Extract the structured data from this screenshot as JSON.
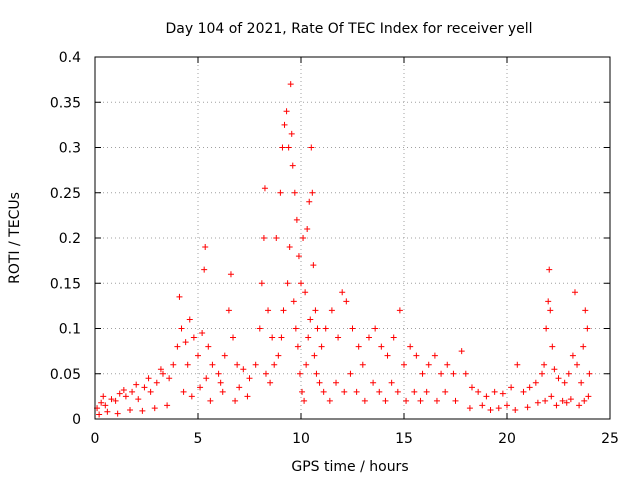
{
  "chart_data": {
    "type": "scatter",
    "title": "Day 104 of 2021, Rate Of TEC Index for receiver yell",
    "xlabel": "GPS time / hours",
    "ylabel": "ROTI / TECUs",
    "xlim": [
      0,
      25
    ],
    "ylim": [
      0,
      0.4
    ],
    "x_ticks": [
      0,
      5,
      10,
      15,
      20,
      25
    ],
    "x_tick_labels": [
      "0",
      "5",
      "10",
      "15",
      "20",
      "25"
    ],
    "y_ticks": [
      0,
      0.05,
      0.1,
      0.15,
      0.2,
      0.25,
      0.3,
      0.35,
      0.4
    ],
    "y_tick_labels": [
      "0",
      "0.05",
      "0.1",
      "0.15",
      "0.2",
      "0.25",
      "0.3",
      "0.35",
      "0.4"
    ],
    "grid": true,
    "marker": "+",
    "color": "#ff0000",
    "series": [
      {
        "name": "ROTI",
        "points": [
          [
            0.1,
            0.012
          ],
          [
            0.3,
            0.018
          ],
          [
            0.5,
            0.015
          ],
          [
            0.8,
            0.022
          ],
          [
            1.0,
            0.02
          ],
          [
            1.2,
            0.028
          ],
          [
            1.5,
            0.025
          ],
          [
            1.8,
            0.03
          ],
          [
            2.1,
            0.022
          ],
          [
            2.4,
            0.035
          ],
          [
            2.7,
            0.03
          ],
          [
            3.0,
            0.04
          ],
          [
            3.3,
            0.05
          ],
          [
            3.6,
            0.045
          ],
          [
            0.2,
            0.005
          ],
          [
            0.6,
            0.008
          ],
          [
            1.1,
            0.006
          ],
          [
            1.7,
            0.01
          ],
          [
            2.3,
            0.009
          ],
          [
            2.9,
            0.012
          ],
          [
            3.5,
            0.015
          ],
          [
            0.4,
            0.025
          ],
          [
            1.4,
            0.032
          ],
          [
            2.0,
            0.038
          ],
          [
            2.6,
            0.045
          ],
          [
            3.2,
            0.055
          ],
          [
            3.8,
            0.06
          ],
          [
            4.0,
            0.08
          ],
          [
            4.1,
            0.135
          ],
          [
            4.2,
            0.1
          ],
          [
            4.4,
            0.085
          ],
          [
            4.6,
            0.11
          ],
          [
            4.8,
            0.09
          ],
          [
            5.0,
            0.07
          ],
          [
            5.2,
            0.095
          ],
          [
            5.3,
            0.165
          ],
          [
            5.35,
            0.19
          ],
          [
            5.5,
            0.08
          ],
          [
            5.7,
            0.06
          ],
          [
            6.0,
            0.05
          ],
          [
            6.3,
            0.07
          ],
          [
            6.5,
            0.12
          ],
          [
            6.6,
            0.16
          ],
          [
            6.7,
            0.09
          ],
          [
            6.9,
            0.06
          ],
          [
            7.2,
            0.055
          ],
          [
            7.5,
            0.045
          ],
          [
            7.8,
            0.06
          ],
          [
            4.3,
            0.03
          ],
          [
            4.7,
            0.025
          ],
          [
            5.1,
            0.035
          ],
          [
            5.6,
            0.02
          ],
          [
            6.2,
            0.03
          ],
          [
            6.8,
            0.02
          ],
          [
            7.4,
            0.025
          ],
          [
            4.5,
            0.06
          ],
          [
            5.4,
            0.045
          ],
          [
            6.1,
            0.04
          ],
          [
            7.0,
            0.035
          ],
          [
            8.0,
            0.1
          ],
          [
            8.1,
            0.15
          ],
          [
            8.2,
            0.2
          ],
          [
            8.25,
            0.255
          ],
          [
            8.4,
            0.12
          ],
          [
            8.6,
            0.09
          ],
          [
            8.8,
            0.2
          ],
          [
            9.0,
            0.25
          ],
          [
            9.1,
            0.3
          ],
          [
            9.2,
            0.325
          ],
          [
            9.3,
            0.34
          ],
          [
            9.4,
            0.3
          ],
          [
            9.5,
            0.37
          ],
          [
            9.55,
            0.315
          ],
          [
            9.6,
            0.28
          ],
          [
            9.7,
            0.25
          ],
          [
            9.8,
            0.22
          ],
          [
            9.9,
            0.18
          ],
          [
            10.0,
            0.15
          ],
          [
            10.1,
            0.2
          ],
          [
            10.2,
            0.14
          ],
          [
            10.3,
            0.21
          ],
          [
            10.4,
            0.24
          ],
          [
            10.5,
            0.3
          ],
          [
            10.55,
            0.25
          ],
          [
            10.6,
            0.17
          ],
          [
            10.7,
            0.12
          ],
          [
            10.8,
            0.1
          ],
          [
            8.3,
            0.05
          ],
          [
            8.5,
            0.04
          ],
          [
            8.7,
            0.06
          ],
          [
            8.9,
            0.07
          ],
          [
            9.05,
            0.09
          ],
          [
            9.15,
            0.12
          ],
          [
            9.35,
            0.15
          ],
          [
            9.45,
            0.19
          ],
          [
            9.65,
            0.13
          ],
          [
            9.75,
            0.1
          ],
          [
            9.85,
            0.08
          ],
          [
            9.95,
            0.05
          ],
          [
            10.05,
            0.03
          ],
          [
            10.15,
            0.02
          ],
          [
            10.25,
            0.06
          ],
          [
            10.35,
            0.09
          ],
          [
            10.45,
            0.11
          ],
          [
            10.65,
            0.07
          ],
          [
            10.75,
            0.05
          ],
          [
            10.9,
            0.04
          ],
          [
            11.0,
            0.08
          ],
          [
            11.2,
            0.1
          ],
          [
            11.5,
            0.12
          ],
          [
            11.8,
            0.09
          ],
          [
            12.0,
            0.14
          ],
          [
            12.2,
            0.13
          ],
          [
            12.5,
            0.1
          ],
          [
            12.8,
            0.08
          ],
          [
            13.0,
            0.06
          ],
          [
            13.3,
            0.09
          ],
          [
            13.6,
            0.1
          ],
          [
            13.9,
            0.08
          ],
          [
            14.2,
            0.07
          ],
          [
            14.5,
            0.09
          ],
          [
            14.8,
            0.12
          ],
          [
            15.0,
            0.06
          ],
          [
            15.3,
            0.08
          ],
          [
            15.6,
            0.07
          ],
          [
            15.9,
            0.05
          ],
          [
            16.2,
            0.06
          ],
          [
            16.5,
            0.07
          ],
          [
            16.8,
            0.05
          ],
          [
            17.1,
            0.06
          ],
          [
            17.4,
            0.05
          ],
          [
            17.8,
            0.075
          ],
          [
            11.1,
            0.03
          ],
          [
            11.4,
            0.02
          ],
          [
            11.7,
            0.04
          ],
          [
            12.1,
            0.03
          ],
          [
            12.4,
            0.05
          ],
          [
            12.7,
            0.03
          ],
          [
            13.1,
            0.02
          ],
          [
            13.5,
            0.04
          ],
          [
            13.8,
            0.03
          ],
          [
            14.1,
            0.02
          ],
          [
            14.4,
            0.04
          ],
          [
            14.7,
            0.03
          ],
          [
            15.1,
            0.02
          ],
          [
            15.5,
            0.03
          ],
          [
            15.8,
            0.02
          ],
          [
            16.1,
            0.03
          ],
          [
            16.6,
            0.02
          ],
          [
            17.0,
            0.03
          ],
          [
            17.5,
            0.02
          ],
          [
            18.0,
            0.05
          ],
          [
            18.3,
            0.035
          ],
          [
            18.6,
            0.03
          ],
          [
            19.0,
            0.025
          ],
          [
            19.4,
            0.03
          ],
          [
            19.8,
            0.028
          ],
          [
            20.2,
            0.035
          ],
          [
            20.5,
            0.06
          ],
          [
            20.8,
            0.03
          ],
          [
            21.1,
            0.035
          ],
          [
            21.4,
            0.04
          ],
          [
            21.7,
            0.05
          ],
          [
            18.2,
            0.012
          ],
          [
            18.8,
            0.015
          ],
          [
            19.2,
            0.01
          ],
          [
            19.6,
            0.012
          ],
          [
            20.0,
            0.015
          ],
          [
            20.4,
            0.01
          ],
          [
            21.0,
            0.013
          ],
          [
            21.5,
            0.018
          ],
          [
            21.8,
            0.06
          ],
          [
            21.9,
            0.1
          ],
          [
            22.0,
            0.13
          ],
          [
            22.05,
            0.165
          ],
          [
            22.1,
            0.12
          ],
          [
            22.2,
            0.08
          ],
          [
            22.3,
            0.055
          ],
          [
            22.5,
            0.045
          ],
          [
            22.8,
            0.04
          ],
          [
            23.0,
            0.05
          ],
          [
            23.2,
            0.07
          ],
          [
            23.3,
            0.14
          ],
          [
            23.4,
            0.06
          ],
          [
            23.6,
            0.04
          ],
          [
            23.7,
            0.08
          ],
          [
            23.8,
            0.12
          ],
          [
            23.9,
            0.1
          ],
          [
            24.0,
            0.05
          ],
          [
            21.85,
            0.02
          ],
          [
            22.15,
            0.025
          ],
          [
            22.4,
            0.015
          ],
          [
            22.7,
            0.02
          ],
          [
            22.9,
            0.018
          ],
          [
            23.1,
            0.022
          ],
          [
            23.5,
            0.015
          ],
          [
            23.75,
            0.02
          ],
          [
            23.95,
            0.025
          ]
        ]
      }
    ]
  }
}
